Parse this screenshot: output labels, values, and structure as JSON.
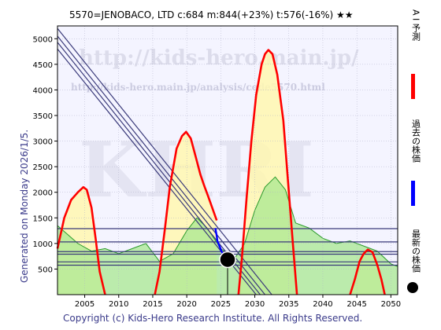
{
  "header": {
    "title": "5570=JENOBACO,  LTD     c:684   m:844(+23%)   t:576(-16%)   ★★"
  },
  "side_label": "Generated on Monday 2026/1/5.",
  "footer": "Copyright (c) Kids-Hero Research Institute. All Rights Reserved.",
  "watermark": {
    "url": "http://kids-hero.main.jp/",
    "url2": "http://kids-hero.main.jp/analysis/code5570.html",
    "big": "KHRI"
  },
  "legend": {
    "ai_forecast": "A I 予測",
    "past_price": "過去の株価",
    "latest_price": "最新の株価"
  },
  "colors": {
    "forecast": "#ff0000",
    "past": "#0000ff",
    "latest": "#000000",
    "trend": "#3a3a7a",
    "hline": "#3a3a7a",
    "green_fill": "#a8e890",
    "yellow_fill": "#fff7b0",
    "plot_bg": "#f4f4ff"
  },
  "chart_data": {
    "type": "line",
    "xlim": [
      2001,
      2051
    ],
    "ylim": [
      0,
      5250
    ],
    "x_ticks": [
      2005,
      2010,
      2015,
      2020,
      2025,
      2030,
      2035,
      2040,
      2045,
      2050
    ],
    "y_ticks": [
      500,
      1000,
      1500,
      2000,
      2500,
      3000,
      3500,
      4000,
      4500,
      5000
    ],
    "grid": true,
    "ai_forecast": [
      {
        "x": [
          2001,
          2002,
          2003,
          2004,
          2004.8,
          2005.3,
          2006,
          2006.6,
          2007.2,
          2008
        ],
        "y": [
          900,
          1500,
          1850,
          2000,
          2100,
          2050,
          1700,
          1100,
          450,
          0
        ]
      },
      {
        "x": [
          2015.3,
          2016,
          2016.8,
          2017.5,
          2018.5,
          2019.3,
          2019.9,
          2020.6,
          2021.3,
          2022,
          2022.5,
          2023.2,
          2024.4
        ],
        "y": [
          0,
          450,
          1300,
          2100,
          2850,
          3100,
          3180,
          3050,
          2700,
          2350,
          2150,
          1900,
          1450
        ]
      },
      {
        "x": [
          2027.6,
          2028.1,
          2028.8,
          2029.5,
          2030.2,
          2031,
          2031.5,
          2032,
          2032.6,
          2033.3,
          2034.2,
          2035,
          2035.6,
          2036.2
        ],
        "y": [
          0,
          700,
          1900,
          3000,
          3900,
          4500,
          4700,
          4780,
          4700,
          4300,
          3400,
          2000,
          1000,
          0
        ]
      },
      {
        "x": [
          2044,
          2044.7,
          2045.4,
          2046,
          2046.6,
          2047.3,
          2048,
          2048.6,
          2049.1
        ],
        "y": [
          0,
          300,
          650,
          800,
          880,
          830,
          580,
          300,
          0
        ]
      }
    ],
    "past_price": {
      "x": [
        2024.2,
        2024.4,
        2024.5,
        2024.7,
        2024.9,
        2025.1,
        2025.3,
        2025.5,
        2025.7,
        2025.9
      ],
      "y": [
        1300,
        1150,
        1050,
        980,
        920,
        850,
        800,
        780,
        740,
        700
      ]
    },
    "latest": {
      "x": 2026.0,
      "y": 684
    },
    "trend_lines": [
      {
        "x": [
          2001,
          2032.5
        ],
        "y": [
          5200,
          0
        ]
      },
      {
        "x": [
          2001,
          2031.5
        ],
        "y": [
          5050,
          0
        ]
      },
      {
        "x": [
          2001,
          2030.8
        ],
        "y": [
          4930,
          0
        ]
      },
      {
        "x": [
          2001,
          2030.2
        ],
        "y": [
          4800,
          0
        ]
      }
    ],
    "h_lines": [
      1290,
      1030,
      840,
      790,
      640,
      576
    ],
    "green_band": {
      "x": [
        2001,
        2004,
        2006,
        2008,
        2010,
        2012,
        2014,
        2016,
        2018,
        2020,
        2021.5,
        2023,
        2025,
        2027,
        2028.5,
        2030,
        2031.5,
        2033,
        2034.5,
        2036,
        2038,
        2040,
        2042,
        2044,
        2046,
        2048,
        2050,
        2051
      ],
      "y": [
        1350,
        1000,
        850,
        900,
        800,
        900,
        1000,
        650,
        800,
        1250,
        1500,
        1300,
        900,
        700,
        1000,
        1650,
        2100,
        2300,
        2050,
        1400,
        1300,
        1100,
        1000,
        1050,
        950,
        850,
        600,
        550
      ]
    }
  }
}
